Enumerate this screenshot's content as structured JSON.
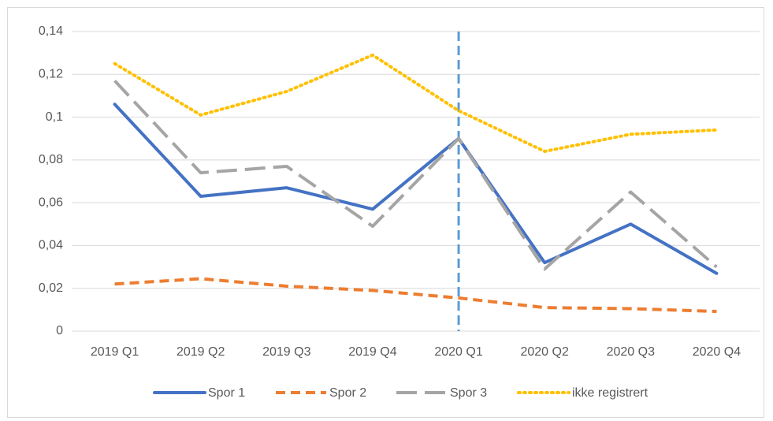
{
  "chart_data": {
    "type": "line",
    "categories": [
      "2019 Q1",
      "2019 Q2",
      "2019 Q3",
      "2019 Q4",
      "2020 Q1",
      "2020 Q2",
      "2020 Q3",
      "2020 Q4"
    ],
    "series": [
      {
        "name": "Spor 1",
        "color": "#4472c4",
        "dash": "solid",
        "values": [
          0.106,
          0.063,
          0.067,
          0.057,
          0.09,
          0.032,
          0.05,
          0.027
        ]
      },
      {
        "name": "Spor 2",
        "color": "#ed7d31",
        "dash": "dashed",
        "values": [
          0.022,
          0.0245,
          0.021,
          0.019,
          0.0155,
          0.011,
          0.0105,
          0.0092
        ]
      },
      {
        "name": "Spor 3",
        "color": "#a5a5a5",
        "dash": "long-dash",
        "values": [
          0.117,
          0.074,
          0.077,
          0.049,
          0.09,
          0.029,
          0.065,
          0.03
        ]
      },
      {
        "name": "ikke registrert",
        "color": "#ffc000",
        "dash": "dotted",
        "values": [
          0.125,
          0.101,
          0.112,
          0.129,
          0.103,
          0.084,
          0.092,
          0.094
        ]
      }
    ],
    "ylim": [
      0,
      0.14
    ],
    "yticks": [
      0,
      {
        "value": 0.02,
        "label": "0,02"
      },
      {
        "value": 0.04,
        "label": "0,04"
      },
      {
        "value": 0.06,
        "label": "0,06"
      },
      {
        "value": 0.08,
        "label": "0,08"
      },
      {
        "value": 0.1,
        "label": "0,1"
      },
      {
        "value": 0.12,
        "label": "0,12"
      },
      {
        "value": 0.14,
        "label": "0,14"
      }
    ],
    "grid": true,
    "legend": "bottom",
    "marker_line": {
      "category_index": 4,
      "color": "#5b9bd5"
    }
  }
}
